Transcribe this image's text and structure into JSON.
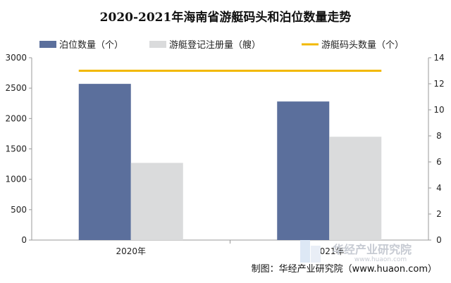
{
  "chart_data": {
    "type": "bar",
    "title": "2020-2021年海南省游艇码头和泊位数量走势",
    "categories": [
      "2020年",
      "2021年"
    ],
    "series": [
      {
        "name": "泊位数量（个）",
        "type": "bar",
        "axis": "left",
        "color": "#5b6f9c",
        "values": [
          2570,
          2280
        ]
      },
      {
        "name": "游艇登记注册量（艘）",
        "type": "bar",
        "axis": "left",
        "color": "#dadbdc",
        "values": [
          1270,
          1700
        ]
      },
      {
        "name": "游艇码头数量（个）",
        "type": "line",
        "axis": "right",
        "color": "#f2b800",
        "values": [
          13,
          13
        ]
      }
    ],
    "y_left": {
      "min": 0,
      "max": 3000,
      "ticks": [
        "0",
        "500",
        "1000",
        "1500",
        "2000",
        "2500",
        "3000"
      ]
    },
    "y_right": {
      "min": 0,
      "max": 14,
      "ticks": [
        "0",
        "2",
        "4",
        "6",
        "8",
        "10",
        "12",
        "14"
      ]
    },
    "legend_position": "top",
    "grid": false
  },
  "source_text": "制图：华经产业研究院（www.huaon.com）",
  "watermark": {
    "text": "华经产业研究院",
    "sub": "www.huaon.com"
  }
}
